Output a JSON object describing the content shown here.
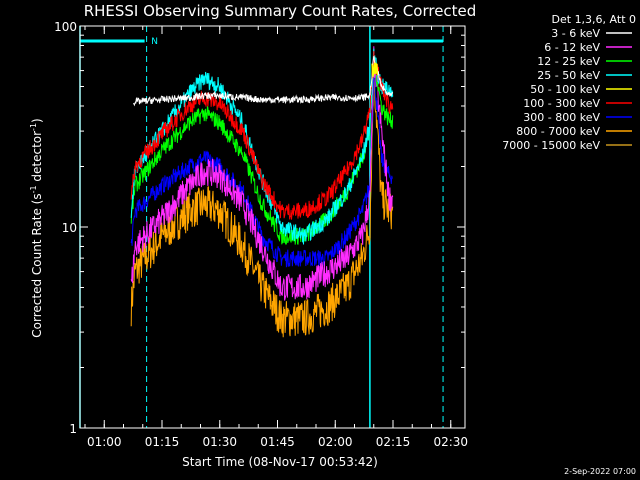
{
  "chart_data": {
    "type": "line",
    "title": "RHESSI Observing Summary Count Rates, Corrected",
    "xlabel": "Start Time (08-Nov-17 00:53:42)",
    "ylabel": "Corrected Count Rate (s⁻¹ detector⁻¹)",
    "ylabel_parts": {
      "base": "Corrected Count Rate (s",
      "exp1": "-1",
      "mid": " detector",
      "exp2": "-1",
      "end": ")"
    },
    "y_scale": "log",
    "ylim": [
      1,
      100
    ],
    "x_range": [
      "00:53:42",
      "02:33:42"
    ],
    "x_ticks": [
      "01:00",
      "01:15",
      "01:30",
      "01:45",
      "02:00",
      "02:15",
      "02:30"
    ],
    "y_ticks": [
      "1",
      "10",
      "100"
    ],
    "legend_header": "Det 1,3,6, Att 0",
    "legend_placement": "top-right, outside plot",
    "x_time_points": [
      "01:07",
      "01:08",
      "01:15",
      "01:22",
      "01:26",
      "01:30",
      "01:36",
      "01:41",
      "01:46",
      "01:52",
      "01:58",
      "02:03",
      "02:07",
      "02:09",
      "02:10",
      "02:12",
      "02:14",
      "02:15"
    ],
    "series": [
      {
        "name": "3 - 6 keV",
        "color": "#ffffff",
        "values": [
          null,
          42,
          43,
          44,
          45,
          45,
          44,
          43,
          43,
          43,
          44,
          44,
          44,
          45,
          70,
          50,
          45,
          45
        ]
      },
      {
        "name": "6 - 12 keV",
        "color": "#ff2cff",
        "values": [
          5,
          8,
          11,
          16,
          19,
          18,
          13,
          8,
          5,
          5,
          6,
          7,
          9,
          14,
          70,
          30,
          14,
          14
        ]
      },
      {
        "name": "12 - 25 keV",
        "color": "#00ff00",
        "values": [
          11,
          16,
          24,
          33,
          37,
          33,
          23,
          13,
          9,
          9,
          11,
          15,
          22,
          30,
          70,
          40,
          34,
          34
        ]
      },
      {
        "name": "25 - 50 keV",
        "color": "#00ffff",
        "values": [
          12,
          19,
          30,
          46,
          55,
          50,
          33,
          17,
          10,
          9,
          11,
          15,
          22,
          32,
          70,
          50,
          48,
          48
        ]
      },
      {
        "name": "50 - 100 keV",
        "color": "#ffff00",
        "values": [
          null,
          null,
          null,
          null,
          null,
          null,
          null,
          null,
          null,
          null,
          null,
          null,
          null,
          null,
          60,
          null,
          null,
          null
        ]
      },
      {
        "name": "100 - 300 keV",
        "color": "#ff0000",
        "values": [
          14,
          20,
          29,
          40,
          44,
          41,
          30,
          17,
          12,
          12,
          14,
          19,
          27,
          38,
          70,
          50,
          40,
          40
        ]
      },
      {
        "name": "300 - 800 keV",
        "color": "#0000ff",
        "values": [
          8,
          12,
          16,
          20,
          22,
          20,
          15,
          9,
          7,
          7,
          7,
          9,
          12,
          16,
          60,
          22,
          18,
          18
        ]
      },
      {
        "name": "800 - 7000 keV",
        "color": "#ffa500",
        "values": [
          4,
          6,
          9,
          12,
          13,
          12,
          8,
          5,
          3.5,
          3.5,
          4,
          5,
          7,
          10,
          60,
          14,
          12,
          12
        ]
      },
      {
        "name": "7000 - 15000 keV",
        "color": "#c8961e",
        "values": [
          null,
          null,
          null,
          null,
          null,
          null,
          null,
          null,
          null,
          null,
          null,
          null,
          null,
          null,
          null,
          null,
          null,
          null
        ]
      }
    ],
    "markers": [
      {
        "label": "N",
        "type": "night"
      }
    ]
  },
  "footer": {
    "date": "2-Sep-2022 07:00"
  }
}
